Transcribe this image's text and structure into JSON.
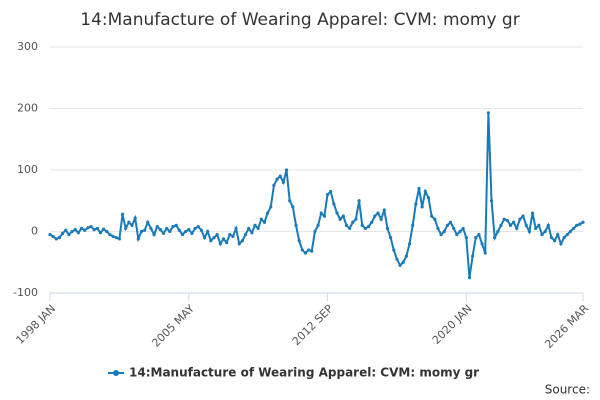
{
  "chart_data": {
    "type": "line",
    "title": "14:Manufacture of Wearing Apparel: CVM: momy gr",
    "source": "Source:",
    "categories": [
      "1998 JAN",
      null,
      null,
      null,
      null,
      null,
      null,
      null,
      null,
      null,
      null,
      null,
      null,
      null,
      null,
      null,
      null,
      null,
      null,
      null,
      null,
      null,
      null,
      null,
      null,
      null,
      null,
      null,
      null,
      null,
      null,
      null,
      null,
      null,
      null,
      null,
      null,
      null,
      null,
      null,
      null,
      null,
      null,
      null,
      "2005 MAY",
      null,
      null,
      null,
      null,
      null,
      null,
      null,
      null,
      null,
      null,
      null,
      null,
      null,
      null,
      null,
      null,
      null,
      null,
      null,
      null,
      null,
      null,
      null,
      null,
      null,
      null,
      null,
      null,
      null,
      null,
      null,
      null,
      null,
      null,
      null,
      null,
      null,
      null,
      null,
      null,
      null,
      null,
      null,
      "2012 SEP",
      null,
      null,
      null,
      null,
      null,
      null,
      null,
      null,
      null,
      null,
      null,
      null,
      null,
      null,
      null,
      null,
      null,
      null,
      null,
      null,
      null,
      null,
      null,
      null,
      null,
      null,
      null,
      null,
      null,
      null,
      null,
      null,
      null,
      null,
      null,
      null,
      null,
      null,
      null,
      null,
      null,
      null,
      null,
      "2020 JAN",
      null,
      null,
      null,
      null,
      null,
      null,
      null,
      null,
      null,
      null,
      null,
      null,
      null,
      null,
      null,
      null,
      null,
      null,
      null,
      null,
      null,
      null,
      null,
      null,
      null,
      null,
      null,
      null,
      null,
      null,
      null,
      null,
      null,
      null,
      null,
      null,
      "2026 MAR"
    ],
    "series": [
      {
        "name": "14:Manufacture of Wearing Apparel: CVM: momy gr",
        "color": "#1a7ab8",
        "values": [
          -5,
          -8,
          -12,
          -10,
          -3,
          2,
          -5,
          0,
          3,
          -2,
          5,
          2,
          6,
          8,
          3,
          5,
          -2,
          4,
          0,
          -5,
          -8,
          -10,
          -12,
          28,
          5,
          15,
          10,
          22,
          -12,
          0,
          2,
          15,
          5,
          -5,
          8,
          3,
          -3,
          5,
          0,
          8,
          10,
          2,
          -5,
          0,
          3,
          -3,
          5,
          8,
          2,
          -10,
          0,
          -15,
          -10,
          -5,
          -20,
          -12,
          -18,
          -5,
          -8,
          5,
          -20,
          -15,
          -5,
          5,
          -2,
          10,
          5,
          20,
          15,
          30,
          40,
          75,
          85,
          90,
          80,
          100,
          50,
          40,
          10,
          -15,
          -30,
          -35,
          -30,
          -32,
          0,
          10,
          30,
          25,
          60,
          65,
          45,
          30,
          20,
          25,
          10,
          5,
          15,
          20,
          50,
          10,
          5,
          8,
          15,
          25,
          30,
          20,
          35,
          5,
          -10,
          -30,
          -45,
          -55,
          -50,
          -40,
          -20,
          10,
          45,
          70,
          40,
          65,
          55,
          25,
          20,
          5,
          -5,
          0,
          10,
          15,
          5,
          -5,
          0,
          5,
          -10,
          -75,
          -40,
          -10,
          -5,
          -20,
          -35,
          193,
          50,
          -10,
          0,
          10,
          20,
          18,
          10,
          15,
          5,
          20,
          25,
          10,
          0,
          30,
          5,
          10,
          -5,
          0,
          10,
          -10,
          -15,
          -5,
          -20,
          -10,
          -5,
          0,
          5,
          10,
          12,
          15
        ]
      }
    ],
    "ylim": [
      -100,
      300
    ],
    "yticks": [
      -100,
      0,
      100,
      200,
      300
    ],
    "grid": true
  }
}
